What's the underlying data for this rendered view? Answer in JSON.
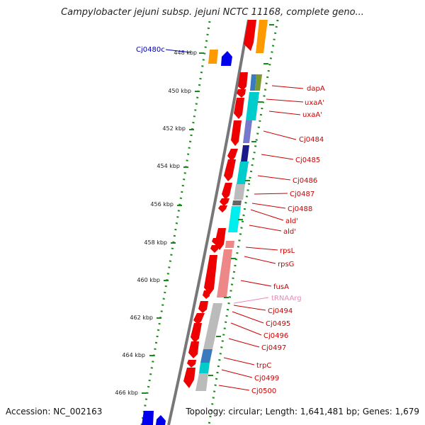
{
  "title": "Campylobacter jejuni subsp. jejuni NCTC 11168, complete geno...",
  "footer": {
    "accession": "Accession: NC_002163",
    "summary": "Topology: circular; Length: 1,641,481 bp; Genes: 1,679"
  },
  "ticks": [
    "448 kbp",
    "450 kbp",
    "452 kbp",
    "454 kbp",
    "456 kbp",
    "458 kbp",
    "460 kbp",
    "462 kbp",
    "464 kbp",
    "466 kbp"
  ],
  "left_labels": [
    {
      "text": "Cj0480c",
      "color": "#0000aa"
    }
  ],
  "gene_labels": [
    {
      "text": "dapA",
      "color": "#cc0000"
    },
    {
      "text": "uxaA'",
      "color": "#cc0000"
    },
    {
      "text": "uxaA'",
      "color": "#cc0000"
    },
    {
      "text": "Cj0484",
      "color": "#cc0000"
    },
    {
      "text": "Cj0485",
      "color": "#cc0000"
    },
    {
      "text": "Cj0486",
      "color": "#cc0000"
    },
    {
      "text": "Cj0487",
      "color": "#cc0000"
    },
    {
      "text": "Cj0488",
      "color": "#cc0000"
    },
    {
      "text": "ald'",
      "color": "#cc0000"
    },
    {
      "text": "ald'",
      "color": "#cc0000"
    },
    {
      "text": "rpsL",
      "color": "#cc0000"
    },
    {
      "text": "rpsG",
      "color": "#cc0000"
    },
    {
      "text": "fusA",
      "color": "#cc0000"
    },
    {
      "text": "tRNAArg",
      "color": "#ee88bb"
    },
    {
      "text": "Cj0494",
      "color": "#cc0000"
    },
    {
      "text": "Cj0495",
      "color": "#cc0000"
    },
    {
      "text": "Cj0496",
      "color": "#cc0000"
    },
    {
      "text": "Cj0497",
      "color": "#cc0000"
    },
    {
      "text": "trpC",
      "color": "#cc0000"
    },
    {
      "text": "Cj0499",
      "color": "#cc0000"
    },
    {
      "text": "Cj0500",
      "color": "#cc0000"
    }
  ],
  "colors": {
    "forward_gene": "#ee0000",
    "reverse_gene": "#0000ee",
    "backbone": "#777777",
    "tick_dots": "#1a8a1a",
    "cog_orange": "#ff9900",
    "cog_cyan": "#00cccc",
    "cog_grey": "#bbbbbb",
    "cog_pink": "#ee8888",
    "cog_steelblue": "#3a7abf",
    "cog_navy": "#1a1a88",
    "cog_olive": "#7a9a30"
  }
}
